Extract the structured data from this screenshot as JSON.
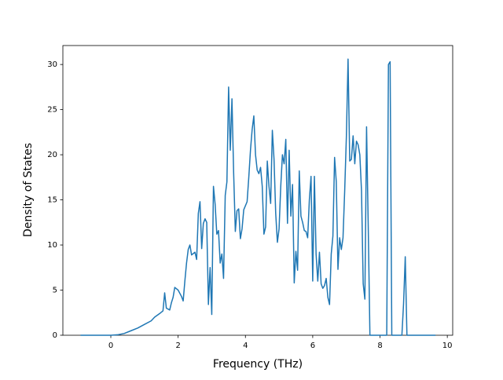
{
  "chart_data": {
    "type": "line",
    "xlabel": "Frequency (THz)",
    "ylabel": "Density of States",
    "x": [
      -0.9,
      0,
      0.2,
      0.4,
      0.6,
      0.8,
      1.0,
      1.2,
      1.3,
      1.45,
      1.55,
      1.6,
      1.65,
      1.75,
      1.8,
      1.85,
      1.9,
      2.0,
      2.1,
      2.15,
      2.2,
      2.25,
      2.3,
      2.35,
      2.4,
      2.5,
      2.55,
      2.6,
      2.65,
      2.7,
      2.75,
      2.8,
      2.85,
      2.9,
      2.95,
      3.0,
      3.05,
      3.1,
      3.15,
      3.2,
      3.25,
      3.3,
      3.35,
      3.4,
      3.45,
      3.5,
      3.55,
      3.6,
      3.65,
      3.7,
      3.75,
      3.8,
      3.85,
      3.9,
      3.95,
      4.05,
      4.1,
      4.15,
      4.2,
      4.25,
      4.3,
      4.35,
      4.4,
      4.45,
      4.5,
      4.55,
      4.6,
      4.65,
      4.7,
      4.75,
      4.8,
      4.85,
      4.9,
      4.95,
      5.0,
      5.05,
      5.1,
      5.15,
      5.2,
      5.25,
      5.3,
      5.35,
      5.4,
      5.45,
      5.5,
      5.55,
      5.6,
      5.65,
      5.7,
      5.75,
      5.8,
      5.85,
      5.9,
      5.95,
      6.0,
      6.05,
      6.1,
      6.15,
      6.2,
      6.25,
      6.3,
      6.35,
      6.4,
      6.45,
      6.5,
      6.55,
      6.6,
      6.65,
      6.7,
      6.75,
      6.8,
      6.85,
      6.9,
      6.95,
      7.0,
      7.05,
      7.1,
      7.15,
      7.2,
      7.25,
      7.3,
      7.35,
      7.4,
      7.45,
      7.5,
      7.55,
      7.6,
      7.65,
      7.7,
      8.2,
      8.25,
      8.3,
      8.35,
      8.65,
      8.7,
      8.75,
      8.8,
      9.65
    ],
    "values": [
      0,
      0,
      0.05,
      0.2,
      0.5,
      0.8,
      1.2,
      1.6,
      2.0,
      2.4,
      2.7,
      4.7,
      3.0,
      2.8,
      3.6,
      4.2,
      5.3,
      5.0,
      4.3,
      3.8,
      6.0,
      8.0,
      9.5,
      10.0,
      8.9,
      9.2,
      8.4,
      13.5,
      14.8,
      9.6,
      12.4,
      12.9,
      12.5,
      3.4,
      7.5,
      2.3,
      16.5,
      14.5,
      11.2,
      11.6,
      8.0,
      9.0,
      6.3,
      15.5,
      17.0,
      27.5,
      20.5,
      26.2,
      18.0,
      11.5,
      13.8,
      14.0,
      10.7,
      11.8,
      13.9,
      14.8,
      17.5,
      20.5,
      22.8,
      24.3,
      20.0,
      18.3,
      17.9,
      18.6,
      16.5,
      11.2,
      12.0,
      19.3,
      16.5,
      14.6,
      22.7,
      19.5,
      13.5,
      10.3,
      11.8,
      16.5,
      20.0,
      19.0,
      21.7,
      12.4,
      20.5,
      13.2,
      16.7,
      5.8,
      9.3,
      7.2,
      18.2,
      13.2,
      12.5,
      11.6,
      11.5,
      10.8,
      15.0,
      17.6,
      6.0,
      17.6,
      9.0,
      6.0,
      9.2,
      5.7,
      5.2,
      5.5,
      6.3,
      4.2,
      3.4,
      9.0,
      11.0,
      19.7,
      17.0,
      7.3,
      10.8,
      9.5,
      10.8,
      16.0,
      22.0,
      30.6,
      19.3,
      19.5,
      22.1,
      19.0,
      21.5,
      21.1,
      20.0,
      16.0,
      5.7,
      4.0,
      23.1,
      12.0,
      0,
      0,
      30.0,
      30.3,
      0,
      0,
      3.5,
      8.7,
      0,
      0
    ],
    "color": "#1f77b4",
    "xlim": [
      -1.425,
      10.16
    ],
    "ylim": [
      0,
      32.1
    ],
    "xticks": [
      0,
      2,
      4,
      6,
      8,
      10
    ],
    "yticks": [
      0,
      5,
      10,
      15,
      20,
      25,
      30
    ]
  }
}
